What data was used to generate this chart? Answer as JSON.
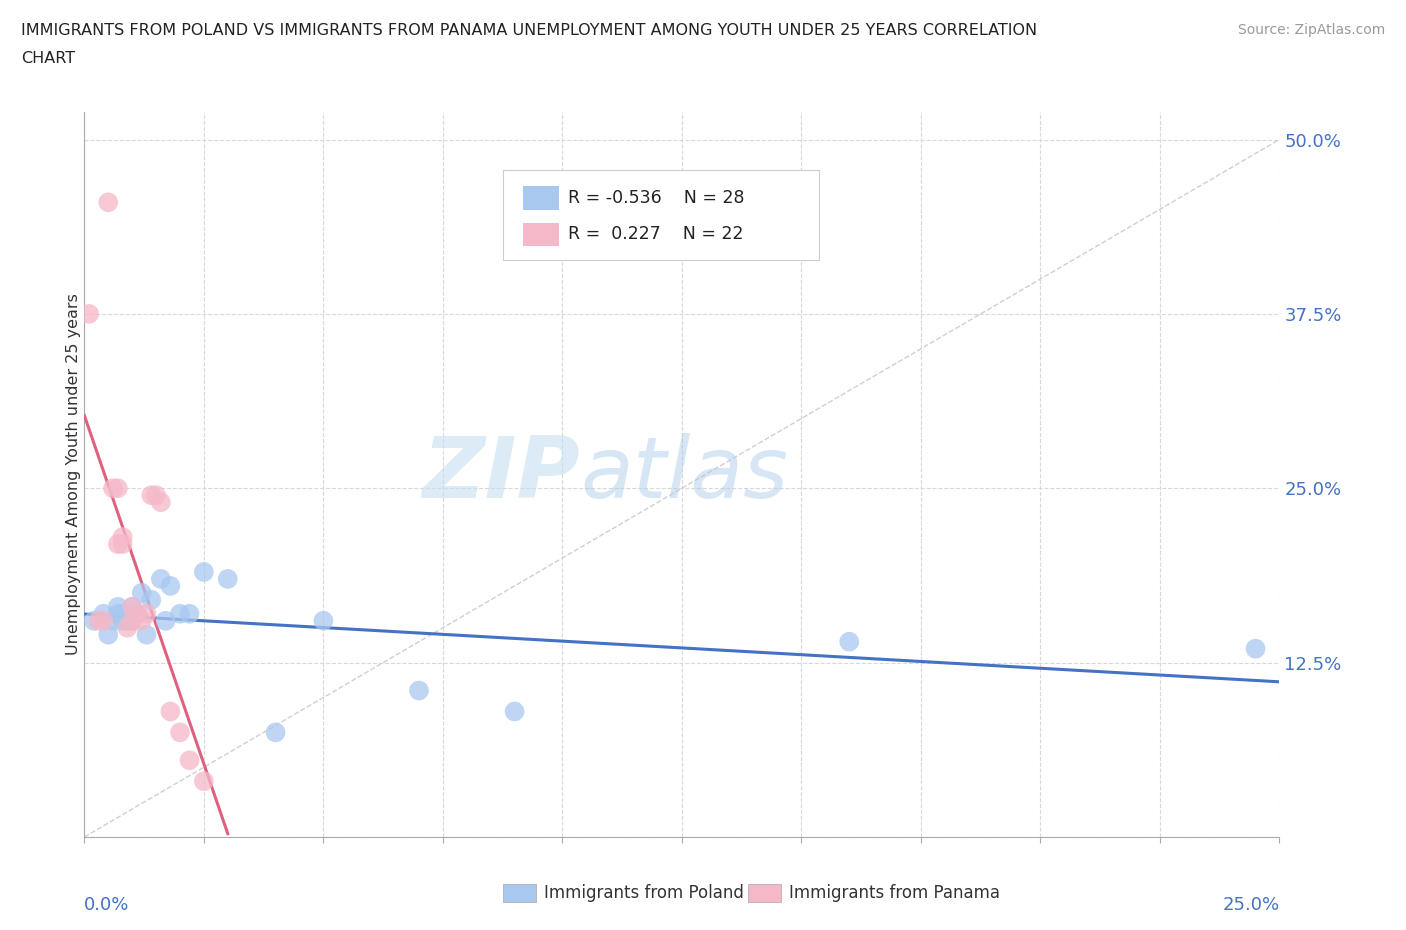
{
  "title_line1": "IMMIGRANTS FROM POLAND VS IMMIGRANTS FROM PANAMA UNEMPLOYMENT AMONG YOUTH UNDER 25 YEARS CORRELATION",
  "title_line2": "CHART",
  "source": "Source: ZipAtlas.com",
  "ylabel": "Unemployment Among Youth under 25 years",
  "xlim": [
    0.0,
    0.25
  ],
  "ylim": [
    0.0,
    0.52
  ],
  "poland_R": -0.536,
  "poland_N": 28,
  "panama_R": 0.227,
  "panama_N": 22,
  "poland_color": "#a8c8f0",
  "panama_color": "#f5b8c8",
  "poland_line_color": "#4472c4",
  "panama_line_color": "#e06080",
  "watermark_zip": "ZIP",
  "watermark_atlas": "atlas",
  "poland_x": [
    0.002,
    0.004,
    0.005,
    0.006,
    0.007,
    0.007,
    0.008,
    0.008,
    0.009,
    0.01,
    0.01,
    0.011,
    0.012,
    0.013,
    0.014,
    0.016,
    0.017,
    0.018,
    0.02,
    0.022,
    0.025,
    0.03,
    0.04,
    0.05,
    0.07,
    0.09,
    0.16,
    0.245
  ],
  "poland_y": [
    0.155,
    0.16,
    0.145,
    0.155,
    0.16,
    0.165,
    0.155,
    0.16,
    0.155,
    0.165,
    0.155,
    0.16,
    0.175,
    0.145,
    0.17,
    0.185,
    0.155,
    0.18,
    0.16,
    0.16,
    0.19,
    0.185,
    0.075,
    0.155,
    0.105,
    0.09,
    0.14,
    0.135
  ],
  "panama_x": [
    0.001,
    0.003,
    0.004,
    0.005,
    0.006,
    0.007,
    0.007,
    0.008,
    0.008,
    0.009,
    0.01,
    0.01,
    0.011,
    0.012,
    0.013,
    0.014,
    0.015,
    0.016,
    0.018,
    0.02,
    0.022,
    0.025
  ],
  "panama_y": [
    0.375,
    0.155,
    0.155,
    0.455,
    0.25,
    0.25,
    0.21,
    0.215,
    0.21,
    0.15,
    0.155,
    0.165,
    0.16,
    0.155,
    0.16,
    0.245,
    0.245,
    0.24,
    0.09,
    0.075,
    0.055,
    0.04
  ]
}
